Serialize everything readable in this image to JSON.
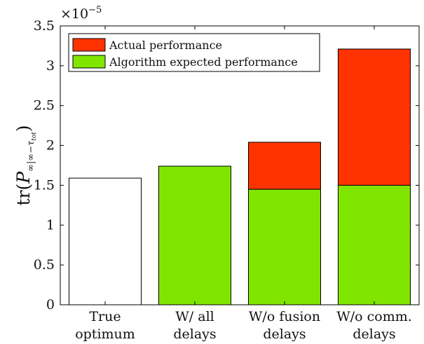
{
  "chart_data": {
    "type": "bar",
    "stacked": true,
    "ylabel_parts": {
      "prefix": "tr(",
      "main": "P",
      "sub": "∞|∞−τ",
      "subsub": "tot",
      "suffix": ")"
    },
    "yexponent_label": {
      "base": "×10",
      "exp": "−5"
    },
    "ylim": [
      0,
      3.5
    ],
    "yticks": [
      0,
      0.5,
      1,
      1.5,
      2,
      2.5,
      3,
      3.5
    ],
    "ytick_labels": [
      "0",
      "0.5",
      "1",
      "1.5",
      "2",
      "2.5",
      "3",
      "3.5"
    ],
    "categories": [
      [
        "True",
        "optimum"
      ],
      [
        "W/ all",
        "delays"
      ],
      [
        "W/o fusion",
        "delays"
      ],
      [
        "W/o comm.",
        "delays"
      ]
    ],
    "series": [
      {
        "name": "Actual performance",
        "color": "#ff3300",
        "values": [
          0,
          0,
          0.59,
          1.71
        ]
      },
      {
        "name": "Algorithm expected performance",
        "color": "#80e600",
        "values": [
          0,
          1.74,
          1.45,
          1.5
        ]
      }
    ],
    "baseline_bar": {
      "category_index": 0,
      "value": 1.59,
      "color": "#ffffff"
    },
    "legend_position": "top-left",
    "grid": false
  }
}
